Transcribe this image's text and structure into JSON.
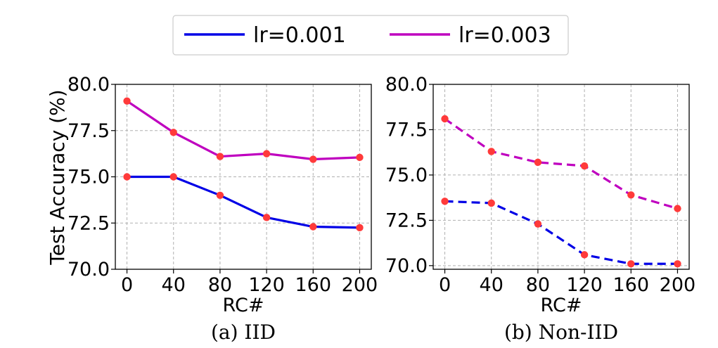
{
  "legend": {
    "entries": [
      {
        "label": "lr=0.001",
        "color": "#0000e6"
      },
      {
        "label": "lr=0.003",
        "color": "#bf00bf"
      }
    ]
  },
  "marker_color": "#ff3a3a",
  "chart_data": [
    {
      "type": "line",
      "title": "",
      "caption": "(a) IID",
      "xlabel": "RC#",
      "ylabel": "Test Accuracy (%)",
      "x": [
        0,
        40,
        80,
        120,
        160,
        200
      ],
      "xticks": [
        "0",
        "40",
        "80",
        "120",
        "160",
        "200"
      ],
      "yticks": [
        "70.0",
        "72.5",
        "75.0",
        "77.5",
        "80.0"
      ],
      "xlim": [
        -10,
        210
      ],
      "ylim": [
        70.0,
        80.0
      ],
      "grid": true,
      "line_style": "solid",
      "series": [
        {
          "name": "lr=0.001",
          "values": [
            75.0,
            75.0,
            74.0,
            72.8,
            72.3,
            72.25
          ]
        },
        {
          "name": "lr=0.003",
          "values": [
            79.1,
            77.4,
            76.1,
            76.25,
            75.95,
            76.05
          ]
        }
      ]
    },
    {
      "type": "line",
      "title": "",
      "caption": "(b) Non-IID",
      "xlabel": "RC#",
      "ylabel": "",
      "x": [
        0,
        40,
        80,
        120,
        160,
        200
      ],
      "xticks": [
        "0",
        "40",
        "80",
        "120",
        "160",
        "200"
      ],
      "yticks": [
        "70.0",
        "72.5",
        "75.0",
        "77.5",
        "80.0"
      ],
      "xlim": [
        -10,
        210
      ],
      "ylim": [
        69.8,
        80.0
      ],
      "grid": true,
      "line_style": "dashed",
      "series": [
        {
          "name": "lr=0.001",
          "values": [
            73.55,
            73.45,
            72.3,
            70.6,
            70.1,
            70.1
          ]
        },
        {
          "name": "lr=0.003",
          "values": [
            78.1,
            76.3,
            75.7,
            75.5,
            73.9,
            73.15
          ]
        }
      ]
    }
  ]
}
